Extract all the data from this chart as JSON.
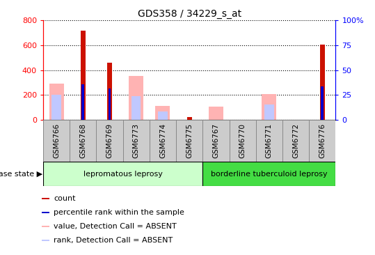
{
  "title": "GDS358 / 34229_s_at",
  "samples": [
    "GSM6766",
    "GSM6768",
    "GSM6769",
    "GSM6773",
    "GSM6774",
    "GSM6775",
    "GSM6767",
    "GSM6770",
    "GSM6771",
    "GSM6772",
    "GSM6776"
  ],
  "count_values": [
    0,
    720,
    460,
    0,
    0,
    20,
    0,
    0,
    0,
    0,
    605
  ],
  "percentile_values": [
    0,
    285,
    250,
    0,
    0,
    0,
    0,
    0,
    0,
    0,
    270
  ],
  "absent_value_values": [
    290,
    0,
    0,
    355,
    115,
    0,
    105,
    0,
    205,
    0,
    0
  ],
  "absent_rank_values": [
    200,
    0,
    0,
    190,
    65,
    0,
    0,
    0,
    125,
    0,
    0
  ],
  "lepromatous_count": 6,
  "borderline_count": 5,
  "ylim_left": [
    0,
    800
  ],
  "ylim_right": [
    0,
    100
  ],
  "yticks_left": [
    0,
    200,
    400,
    600,
    800
  ],
  "yticks_right": [
    0,
    25,
    50,
    75,
    100
  ],
  "color_count": "#cc1100",
  "color_percentile": "#0000cc",
  "color_absent_value": "#ffb3b3",
  "color_absent_rank": "#c0c8ff",
  "legend_labels": [
    "count",
    "percentile rank within the sample",
    "value, Detection Call = ABSENT",
    "rank, Detection Call = ABSENT"
  ],
  "disease_state_label": "disease state",
  "lepromatous_label": "lepromatous leprosy",
  "borderline_label": "borderline tuberculoid leprosy",
  "lepromatous_color": "#ccffcc",
  "borderline_color": "#44dd44",
  "tickbox_color": "#cccccc",
  "tickbox_edge": "#888888",
  "background_color": "#ffffff"
}
